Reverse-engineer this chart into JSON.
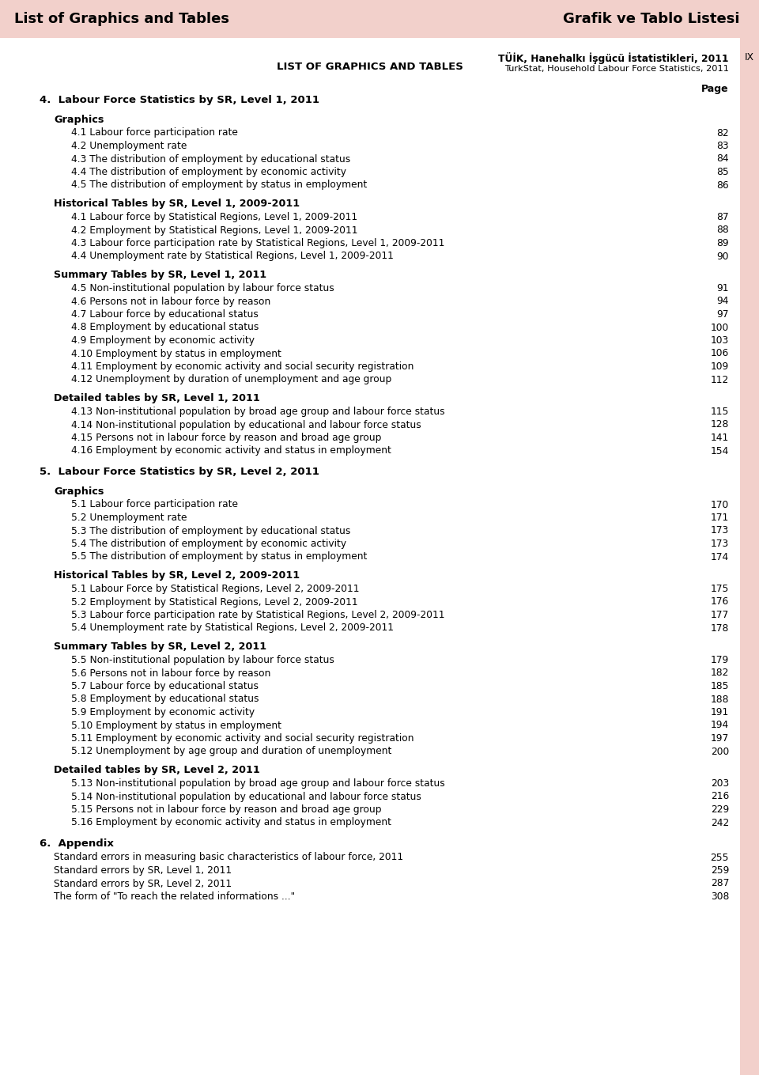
{
  "header_bg": "#f2d0cb",
  "header_left": "List of Graphics and Tables",
  "header_right": "Grafik ve Tablo Listesi",
  "page_bg": "#ffffff",
  "title_center": "LIST OF GRAPHICS AND TABLES",
  "page_label": "Page",
  "right_border_color": "#f2d0cb",
  "footer_line1": "TÜİK, Hanehalkı İşgücü İstatistikleri, 2011",
  "footer_line2": "TurkStat, Household Labour Force Statistics, 2011",
  "footer_right": "IX",
  "sections": [
    {
      "type": "section",
      "text": "4.  Labour Force Statistics by SR, Level 1, 2011",
      "indent": 0,
      "bold": true,
      "page": ""
    },
    {
      "type": "subsection",
      "text": "Graphics",
      "indent": 1,
      "bold": true,
      "page": ""
    },
    {
      "type": "item",
      "text": "4.1 Labour force participation rate",
      "indent": 2,
      "bold": false,
      "page": "82"
    },
    {
      "type": "item",
      "text": "4.2 Unemployment rate",
      "indent": 2,
      "bold": false,
      "page": "83"
    },
    {
      "type": "item",
      "text": "4.3 The distribution of employment by educational status",
      "indent": 2,
      "bold": false,
      "page": "84"
    },
    {
      "type": "item",
      "text": "4.4 The distribution of employment by economic activity",
      "indent": 2,
      "bold": false,
      "page": "85"
    },
    {
      "type": "item",
      "text": "4.5 The distribution of employment by status in employment",
      "indent": 2,
      "bold": false,
      "page": "86"
    },
    {
      "type": "subsection",
      "text": "Historical Tables by SR, Level 1, 2009-2011",
      "indent": 1,
      "bold": true,
      "page": ""
    },
    {
      "type": "item",
      "text": "4.1 Labour force by Statistical Regions, Level 1, 2009-2011",
      "indent": 2,
      "bold": false,
      "page": "87"
    },
    {
      "type": "item",
      "text": "4.2 Employment by Statistical Regions, Level 1, 2009-2011",
      "indent": 2,
      "bold": false,
      "page": "88"
    },
    {
      "type": "item",
      "text": "4.3 Labour force participation rate by Statistical Regions, Level 1, 2009-2011",
      "indent": 2,
      "bold": false,
      "page": "89"
    },
    {
      "type": "item",
      "text": "4.4 Unemployment rate by Statistical Regions, Level 1, 2009-2011",
      "indent": 2,
      "bold": false,
      "page": "90"
    },
    {
      "type": "subsection",
      "text": "Summary Tables by SR, Level 1, 2011",
      "indent": 1,
      "bold": true,
      "page": ""
    },
    {
      "type": "item",
      "text": "4.5 Non-institutional population by labour force status",
      "indent": 2,
      "bold": false,
      "page": "91"
    },
    {
      "type": "item",
      "text": "4.6 Persons not in labour force by reason",
      "indent": 2,
      "bold": false,
      "page": "94"
    },
    {
      "type": "item",
      "text": "4.7 Labour force by educational status",
      "indent": 2,
      "bold": false,
      "page": "97"
    },
    {
      "type": "item",
      "text": "4.8 Employment by educational status",
      "indent": 2,
      "bold": false,
      "page": "100"
    },
    {
      "type": "item",
      "text": "4.9 Employment by economic activity",
      "indent": 2,
      "bold": false,
      "page": "103"
    },
    {
      "type": "item",
      "text": "4.10 Employment by status in employment",
      "indent": 2,
      "bold": false,
      "page": "106"
    },
    {
      "type": "item",
      "text": "4.11 Employment by economic activity and social security registration",
      "indent": 2,
      "bold": false,
      "page": "109"
    },
    {
      "type": "item",
      "text": "4.12 Unemployment by duration of unemployment and age group",
      "indent": 2,
      "bold": false,
      "page": "112"
    },
    {
      "type": "subsection",
      "text": "Detailed tables by SR, Level 1, 2011",
      "indent": 1,
      "bold": true,
      "page": ""
    },
    {
      "type": "item",
      "text": "4.13 Non-institutional population by broad age group and labour force status",
      "indent": 2,
      "bold": false,
      "page": "115"
    },
    {
      "type": "item",
      "text": "4.14 Non-institutional population by educational and labour force status",
      "indent": 2,
      "bold": false,
      "page": "128"
    },
    {
      "type": "item",
      "text": "4.15 Persons not in labour force by reason and broad age group",
      "indent": 2,
      "bold": false,
      "page": "141"
    },
    {
      "type": "item",
      "text": "4.16 Employment by economic activity and status in employment",
      "indent": 2,
      "bold": false,
      "page": "154"
    },
    {
      "type": "section",
      "text": "5.  Labour Force Statistics by SR, Level 2, 2011",
      "indent": 0,
      "bold": true,
      "page": ""
    },
    {
      "type": "subsection",
      "text": "Graphics",
      "indent": 1,
      "bold": true,
      "page": ""
    },
    {
      "type": "item",
      "text": "5.1 Labour force participation rate",
      "indent": 2,
      "bold": false,
      "page": "170"
    },
    {
      "type": "item",
      "text": "5.2 Unemployment rate",
      "indent": 2,
      "bold": false,
      "page": "171"
    },
    {
      "type": "item",
      "text": "5.3 The distribution of employment by educational status",
      "indent": 2,
      "bold": false,
      "page": "173"
    },
    {
      "type": "item",
      "text": "5.4 The distribution of employment by economic activity",
      "indent": 2,
      "bold": false,
      "page": "173"
    },
    {
      "type": "item",
      "text": "5.5 The distribution of employment by status in employment",
      "indent": 2,
      "bold": false,
      "page": "174"
    },
    {
      "type": "subsection",
      "text": "Historical Tables by SR, Level 2, 2009-2011",
      "indent": 1,
      "bold": true,
      "page": ""
    },
    {
      "type": "item",
      "text": "5.1 Labour Force by Statistical Regions, Level 2, 2009-2011",
      "indent": 2,
      "bold": false,
      "page": "175"
    },
    {
      "type": "item",
      "text": "5.2 Employment by Statistical Regions, Level 2, 2009-2011",
      "indent": 2,
      "bold": false,
      "page": "176"
    },
    {
      "type": "item",
      "text": "5.3 Labour force participation rate by Statistical Regions, Level 2, 2009-2011",
      "indent": 2,
      "bold": false,
      "page": "177"
    },
    {
      "type": "item",
      "text": "5.4 Unemployment rate by Statistical Regions, Level 2, 2009-2011",
      "indent": 2,
      "bold": false,
      "page": "178"
    },
    {
      "type": "subsection",
      "text": "Summary Tables by SR, Level 2, 2011",
      "indent": 1,
      "bold": true,
      "page": ""
    },
    {
      "type": "item",
      "text": "5.5 Non-institutional population by labour force status",
      "indent": 2,
      "bold": false,
      "page": "179"
    },
    {
      "type": "item",
      "text": "5.6 Persons not in labour force by reason",
      "indent": 2,
      "bold": false,
      "page": "182"
    },
    {
      "type": "item",
      "text": "5.7 Labour force by educational status",
      "indent": 2,
      "bold": false,
      "page": "185"
    },
    {
      "type": "item",
      "text": "5.8 Employment by educational status",
      "indent": 2,
      "bold": false,
      "page": "188"
    },
    {
      "type": "item",
      "text": "5.9 Employment by economic activity",
      "indent": 2,
      "bold": false,
      "page": "191"
    },
    {
      "type": "item",
      "text": "5.10 Employment by status in employment",
      "indent": 2,
      "bold": false,
      "page": "194"
    },
    {
      "type": "item",
      "text": "5.11 Employment by economic activity and social security registration",
      "indent": 2,
      "bold": false,
      "page": "197"
    },
    {
      "type": "item",
      "text": "5.12 Unemployment by age group and duration of unemployment",
      "indent": 2,
      "bold": false,
      "page": "200"
    },
    {
      "type": "subsection",
      "text": "Detailed tables by SR, Level 2, 2011",
      "indent": 1,
      "bold": true,
      "page": ""
    },
    {
      "type": "item",
      "text": "5.13 Non-institutional population by broad age group and labour force status",
      "indent": 2,
      "bold": false,
      "page": "203"
    },
    {
      "type": "item",
      "text": "5.14 Non-institutional population by educational and labour force status",
      "indent": 2,
      "bold": false,
      "page": "216"
    },
    {
      "type": "item",
      "text": "5.15 Persons not in labour force by reason and broad age group",
      "indent": 2,
      "bold": false,
      "page": "229"
    },
    {
      "type": "item",
      "text": "5.16 Employment by economic activity and status in employment",
      "indent": 2,
      "bold": false,
      "page": "242"
    },
    {
      "type": "section",
      "text": "6.  Appendix",
      "indent": 0,
      "bold": true,
      "page": ""
    },
    {
      "type": "item",
      "text": "Standard errors in measuring basic characteristics of labour force, 2011",
      "indent": 1,
      "bold": false,
      "page": "255"
    },
    {
      "type": "item",
      "text": "Standard errors by SR, Level 1, 2011",
      "indent": 1,
      "bold": false,
      "page": "259"
    },
    {
      "type": "item",
      "text": "Standard errors by SR, Level 2, 2011",
      "indent": 1,
      "bold": false,
      "page": "287"
    },
    {
      "type": "item",
      "text": "The form of \"To reach the related informations ...\"",
      "indent": 1,
      "bold": false,
      "page": "308"
    }
  ]
}
